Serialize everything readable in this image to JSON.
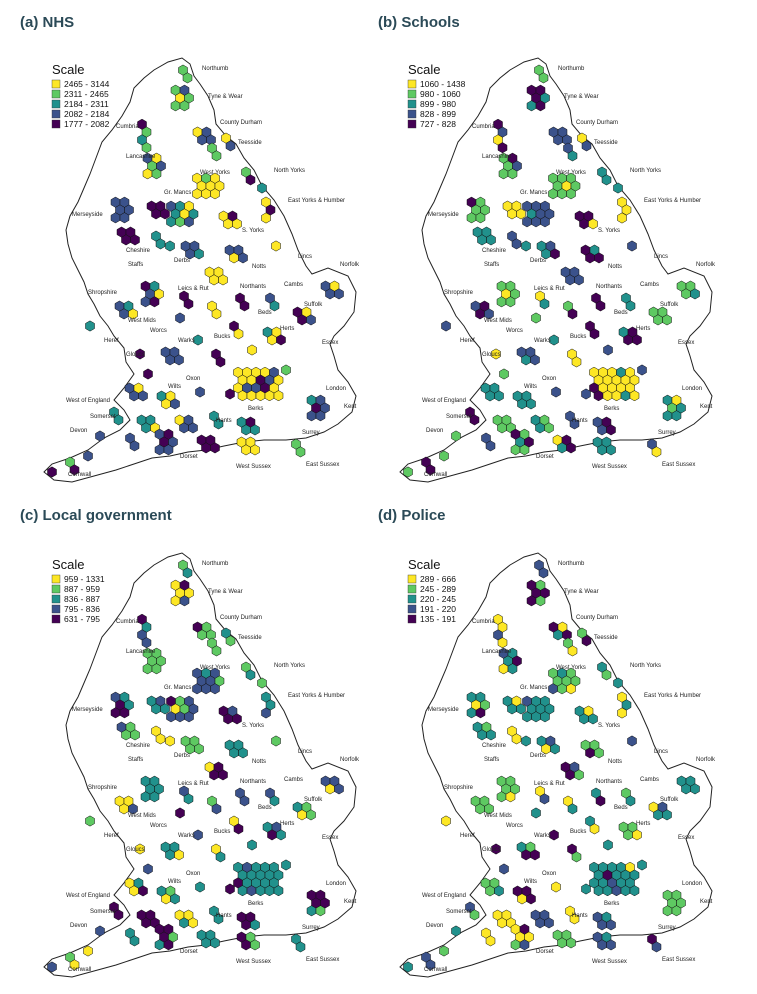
{
  "palette": [
    "#fde725",
    "#5ec962",
    "#21918c",
    "#3b528b",
    "#440154"
  ],
  "outline_color": "#222222",
  "hex_stroke": "#111111",
  "legend_title": "Scale",
  "region_labels": [
    "Northumb",
    "Tyne & Wear",
    "Cumbria",
    "County Durham",
    "Teesside",
    "Lancashire",
    "North Yorks",
    "West Yorks",
    "East Yorks & Humber",
    "Merseyside",
    "Gr. Mancs",
    "S. Yorks",
    "Cheshire",
    "Derbs",
    "Lincs",
    "Staffs",
    "Notts",
    "Norfolk",
    "Shropshire",
    "Leics & Rut",
    "Northants",
    "Cambs",
    "Suffolk",
    "West Mids",
    "Beds",
    "Herts",
    "Heref",
    "Worcs",
    "Warks",
    "Bucks",
    "Essex",
    "Gloucs",
    "Oxon",
    "Wilts",
    "London",
    "West of England",
    "Berks",
    "Kent",
    "Somerset",
    "Hants",
    "Devon",
    "Surrey",
    "Dorset",
    "West Sussex",
    "East Sussex",
    "Cornwall"
  ],
  "panels": [
    {
      "title": "(a) NHS",
      "legend": [
        "2465 - 3144",
        "2311 - 2465",
        "2184 - 2311",
        "2082 - 2184",
        "1777 - 2082"
      ]
    },
    {
      "title": "(b) Schools",
      "legend": [
        "1060 - 1438",
        "980 - 1060",
        "899 - 980",
        "828 - 899",
        "727 - 828"
      ]
    },
    {
      "title": "(c) Local government",
      "legend": [
        "959 - 1331",
        "887 - 959",
        "836 - 887",
        "795 - 836",
        "631 - 795"
      ]
    },
    {
      "title": "(d) Police",
      "legend": [
        "289 - 666",
        "245 - 289",
        "220 - 245",
        "191 - 220",
        "135 - 191"
      ]
    }
  ]
}
